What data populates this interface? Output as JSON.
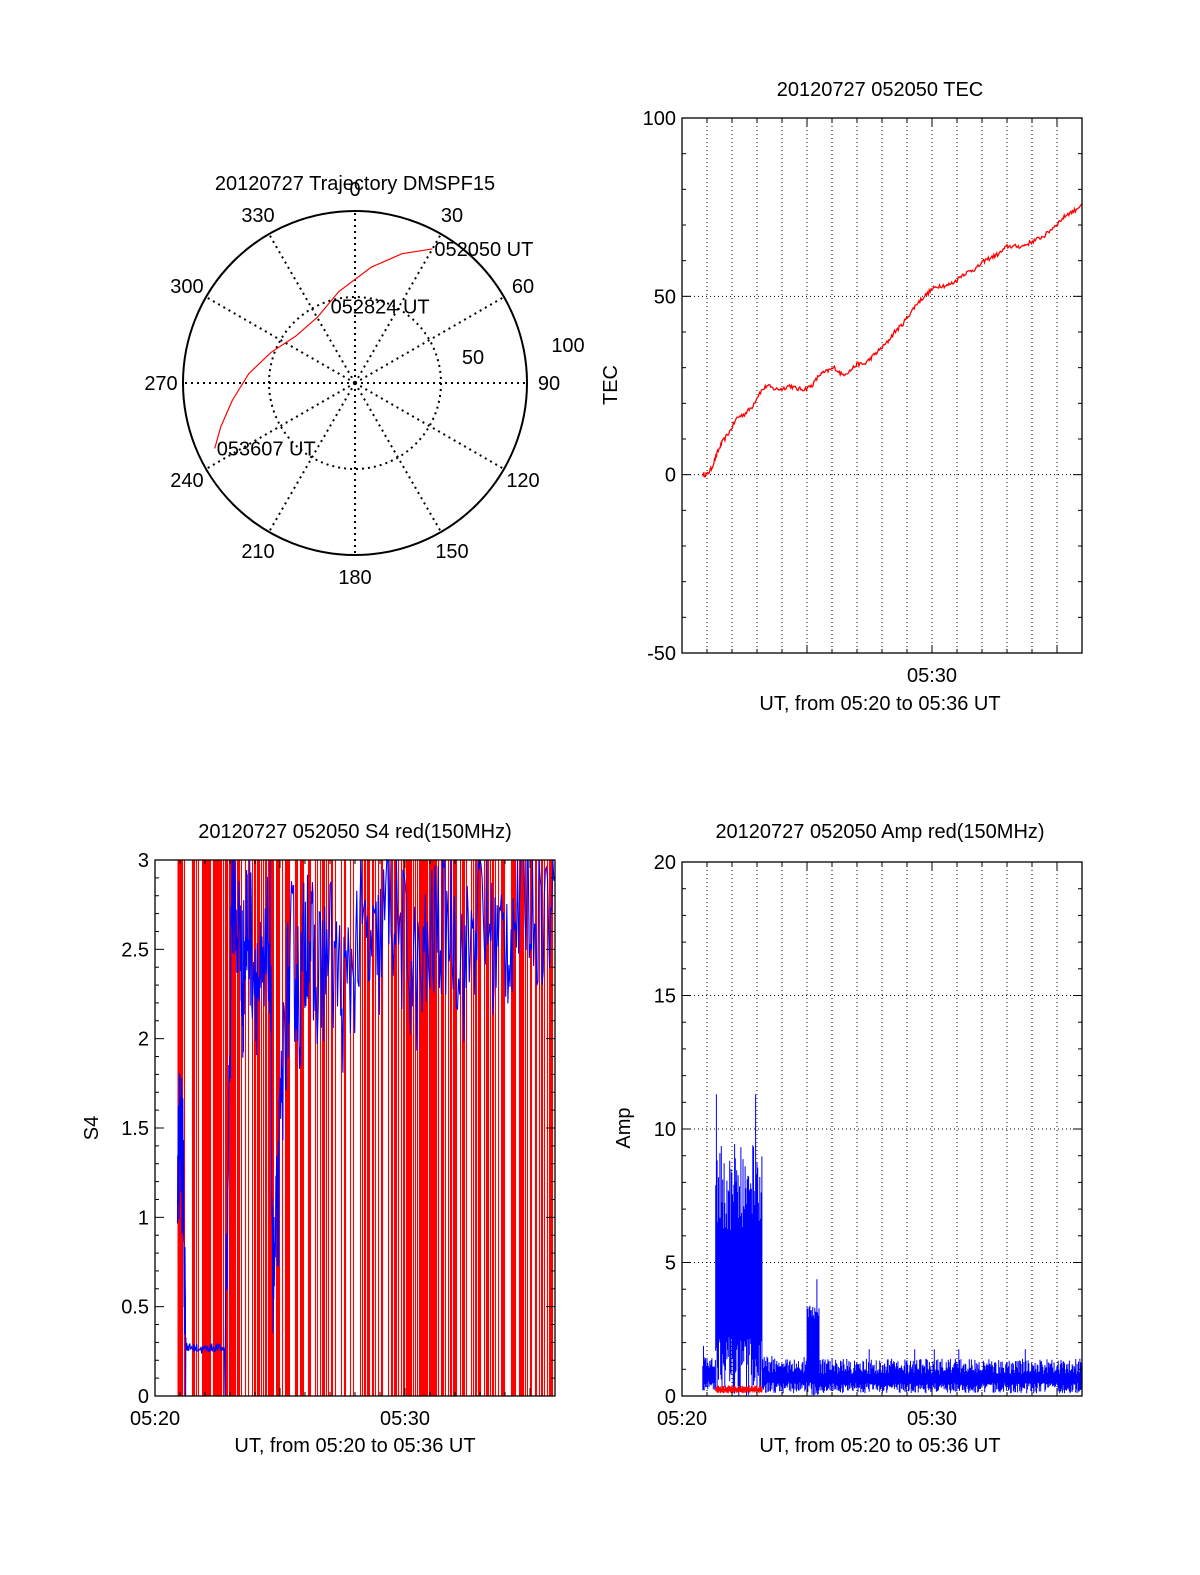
{
  "colors": {
    "red": "#ff0000",
    "blue": "#0000ff",
    "axis": "#000000",
    "grid": "#000000",
    "background": "#ffffff"
  },
  "chart_data": [
    {
      "type": "polar",
      "title": "20120727 Trajectory DMSPF15",
      "angle_labels": [
        "0",
        "30",
        "60",
        "90",
        "120",
        "150",
        "180",
        "210",
        "240",
        "270",
        "300",
        "330"
      ],
      "radial_labels": [
        "50",
        "100"
      ],
      "rmax": 100,
      "grid": true,
      "series": [
        {
          "color": "#ff0000",
          "points": [
            {
              "az": 30,
              "r": 90
            },
            {
              "az": 20,
              "r": 80
            },
            {
              "az": 8,
              "r": 68
            },
            {
              "az": 350,
              "r": 54
            },
            {
              "az": 330,
              "r": 44
            },
            {
              "az": 308,
              "r": 44
            },
            {
              "az": 290,
              "r": 52
            },
            {
              "az": 275,
              "r": 62
            },
            {
              "az": 262,
              "r": 72
            },
            {
              "az": 252,
              "r": 82
            },
            {
              "az": 245,
              "r": 90
            }
          ]
        }
      ],
      "annotations": [
        {
          "text": "052050 UT",
          "az": 30,
          "r": 90
        },
        {
          "text": "052824 UT",
          "az": 341,
          "r": 47
        },
        {
          "text": "053607 UT",
          "az": 245,
          "r": 90
        }
      ]
    },
    {
      "type": "line",
      "title": "20120727 052050 TEC",
      "xlabel": "UT, from 05:20 to 05:36 UT",
      "ylabel": "TEC",
      "xlim": [
        5.3333,
        5.6
      ],
      "ylim": [
        -50,
        100
      ],
      "yticks": [
        "100",
        "50",
        "0",
        "-50"
      ],
      "xticks": [
        "05:30"
      ],
      "grid": true,
      "series": [
        {
          "color": "#ff0000",
          "x": [
            5.3472,
            5.35,
            5.3533,
            5.3567,
            5.36,
            5.365,
            5.37,
            5.375,
            5.38,
            5.385,
            5.39,
            5.395,
            5.4,
            5.405,
            5.41,
            5.415,
            5.42,
            5.425,
            5.43,
            5.435,
            5.44,
            5.445,
            5.45,
            5.455,
            5.46,
            5.465,
            5.47,
            5.475,
            5.48,
            5.485,
            5.49,
            5.495,
            5.5,
            5.505,
            5.51,
            5.515,
            5.52,
            5.525,
            5.53,
            5.535,
            5.54,
            5.545,
            5.55,
            5.555,
            5.56,
            5.565,
            5.57,
            5.575,
            5.58,
            5.585,
            5.59,
            5.595,
            5.6
          ],
          "y": [
            0,
            0,
            2,
            6,
            9,
            12,
            16,
            17,
            19,
            23,
            25,
            24,
            24,
            25,
            24,
            24,
            25,
            28,
            29,
            30,
            28,
            29,
            31,
            31,
            33,
            35,
            37,
            40,
            42,
            45,
            48,
            50,
            52,
            53,
            53,
            54,
            56,
            57,
            58,
            60,
            61,
            62,
            64,
            64,
            64,
            65,
            66,
            67,
            69,
            71,
            73,
            74,
            76
          ]
        }
      ]
    },
    {
      "type": "line",
      "title": "20120727 052050 S4 red(150MHz)",
      "xlabel": "UT, from 05:20 to 05:36 UT",
      "ylabel": "S4",
      "xlim": [
        5.3333,
        5.6
      ],
      "ylim": [
        0,
        3
      ],
      "yticks": [
        "3",
        "2.5",
        "2",
        "1.5",
        "1",
        "0.5",
        "0"
      ],
      "xticks": [
        "05:20",
        "05:30"
      ],
      "grid": false,
      "series": [
        {
          "color": "#ff0000",
          "style": "spikes 0-3",
          "start": 5.3483,
          "end": 5.6
        },
        {
          "color": "#0000ff",
          "x": [
            5.3483,
            5.35,
            5.352,
            5.354,
            5.356,
            5.36,
            5.365,
            5.37,
            5.375,
            5.38,
            5.385,
            5.39,
            5.392,
            5.395,
            5.4,
            5.405,
            5.41,
            5.412,
            5.415,
            5.42,
            5.425,
            5.43,
            5.435,
            5.44,
            5.45,
            5.46,
            5.47,
            5.48,
            5.49,
            5.5,
            5.51,
            5.52,
            5.53,
            5.54,
            5.55,
            5.56,
            5.57,
            5.58,
            5.59,
            5.6
          ],
          "y": [
            1.3,
            1.5,
            1.2,
            0.28,
            0.27,
            0.27,
            0.26,
            0.27,
            0.27,
            0.26,
            2.9,
            2.5,
            2.3,
            2.7,
            2.4,
            2.2,
            2.6,
            0.55,
            1.0,
            2.1,
            2.5,
            2.2,
            2.7,
            2.3,
            2.5,
            2.2,
            2.6,
            2.4,
            2.8,
            2.5,
            2.3,
            2.6,
            2.7,
            2.4,
            2.8,
            2.5,
            2.6,
            2.9,
            2.7,
            2.8
          ]
        }
      ]
    },
    {
      "type": "line",
      "title": "20120727 052050 Amp red(150MHz)",
      "xlabel": "UT, from 05:20 to 05:36 UT",
      "ylabel": "Amp",
      "xlim": [
        5.3333,
        5.6
      ],
      "ylim": [
        0,
        20
      ],
      "yticks": [
        "20",
        "15",
        "10",
        "5",
        "0"
      ],
      "xticks": [
        "05:20",
        "05:30"
      ],
      "grid": true,
      "series": [
        {
          "color": "#0000ff",
          "style": "noise band",
          "segments": [
            {
              "x0": 5.3472,
              "x1": 5.3558,
              "low": 0.2,
              "high": 1.5
            },
            {
              "x0": 5.3558,
              "x1": 5.3867,
              "low": 2.2,
              "high": 9.5
            },
            {
              "x0": 5.3867,
              "x1": 5.4167,
              "low": 0.1,
              "high": 1.5
            },
            {
              "x0": 5.4167,
              "x1": 5.425,
              "low": 1.8,
              "high": 3.5
            },
            {
              "x0": 5.425,
              "x1": 5.6,
              "low": 0.1,
              "high": 1.4
            }
          ],
          "peak": 11.3
        },
        {
          "color": "#ff0000",
          "style": "noise band",
          "segments": [
            {
              "x0": 5.3558,
              "x1": 5.3867,
              "low": 0.1,
              "high": 0.4
            }
          ]
        }
      ]
    }
  ]
}
